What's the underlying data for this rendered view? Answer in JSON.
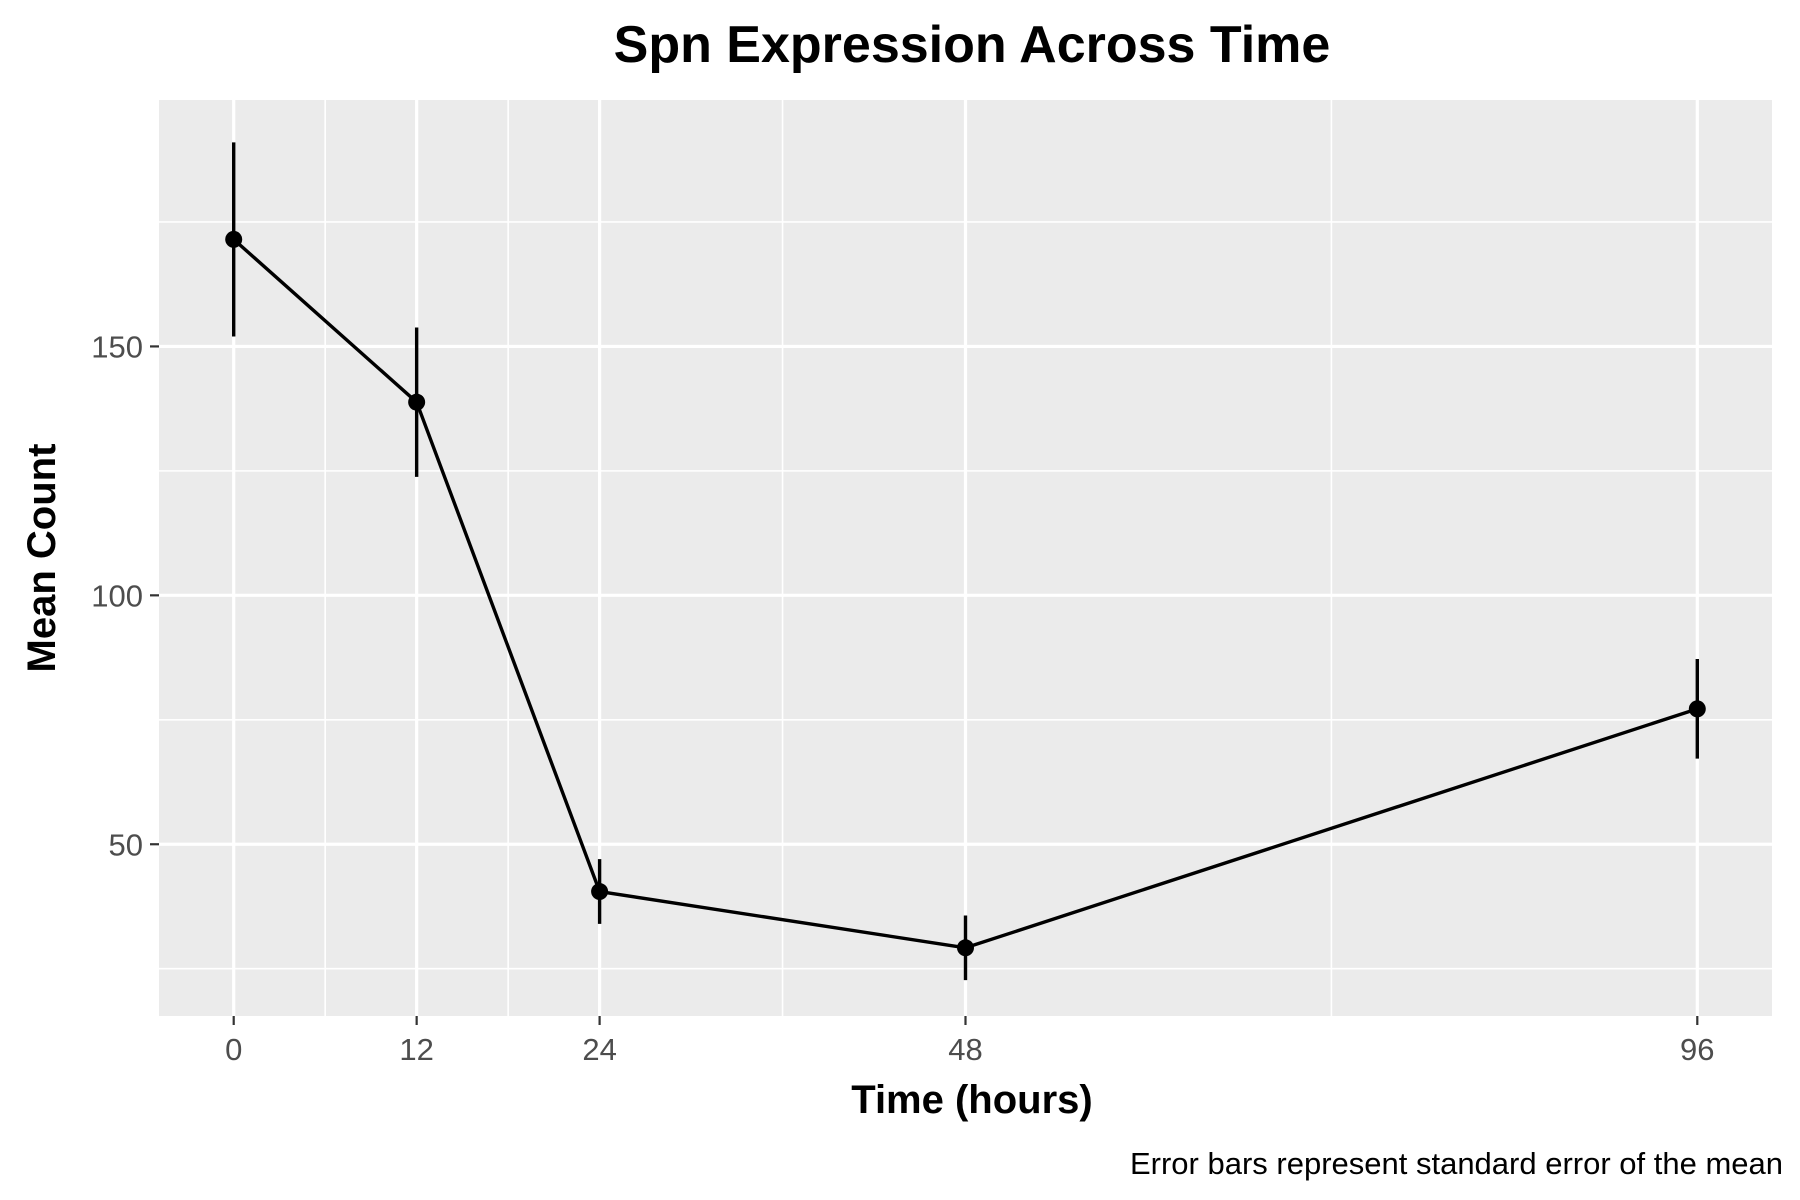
{
  "chart_data": {
    "type": "line",
    "title": "Spn Expression Across Time",
    "xlabel": "Time (hours)",
    "ylabel": "Mean Count",
    "caption": "Error bars represent standard error of the mean",
    "x": [
      0,
      12,
      24,
      48,
      96
    ],
    "x_tick_labels": [
      "0",
      "12",
      "24",
      "48",
      "96"
    ],
    "y_ticks": [
      50,
      100,
      150
    ],
    "y_tick_labels": [
      "50",
      "100",
      "150"
    ],
    "xlim": [
      -4.9,
      100.9
    ],
    "ylim": [
      15.5,
      199.5
    ],
    "series": [
      {
        "values": [
          171.5,
          138.8,
          40.5,
          29.2,
          77.2
        ],
        "se": [
          19.5,
          15.0,
          6.5,
          6.5,
          10.0
        ]
      }
    ],
    "grid": true,
    "background": "#ebebeb",
    "grid_color": "#ffffff",
    "line_color": "#000000",
    "legend": "none"
  }
}
